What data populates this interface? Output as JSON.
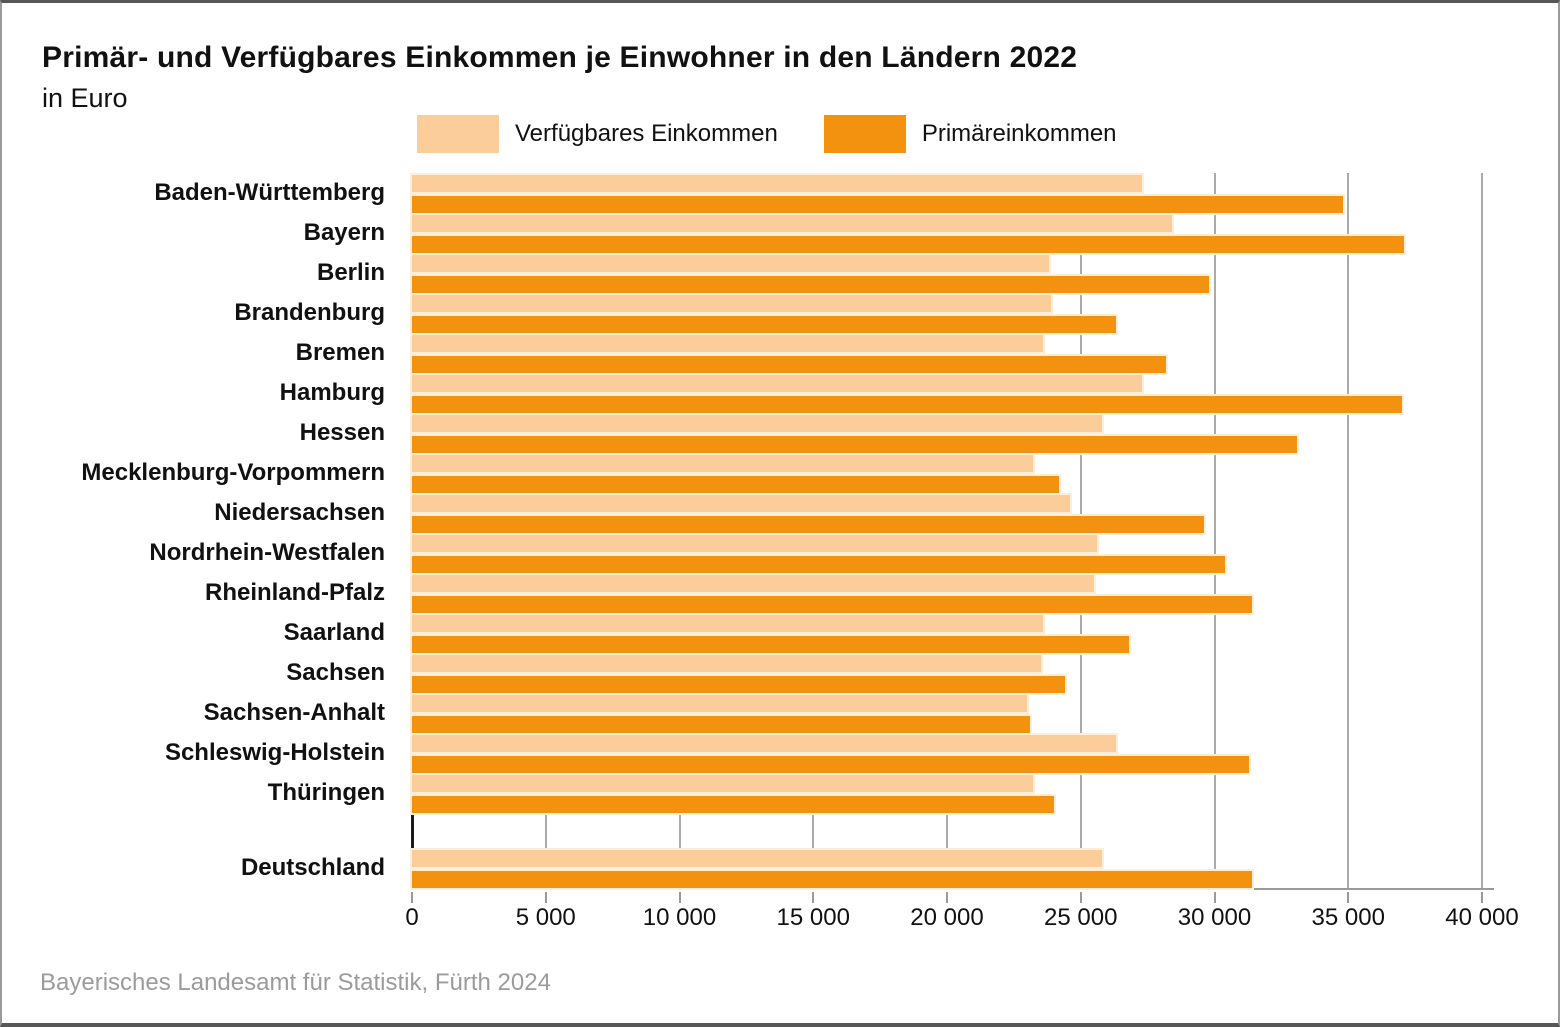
{
  "header": {
    "title": "Primär- und Verfügbares Einkommen je Einwohner in den Ländern 2022",
    "subtitle": "in Euro"
  },
  "legend": {
    "items": [
      {
        "label": "Verfügbares Einkommen",
        "color": "#FBCD9B"
      },
      {
        "label": "Primäreinkommen",
        "color": "#F3920F"
      }
    ]
  },
  "source": "Bayerisches Landesamt für Statistik, Fürth 2024",
  "chart_data": {
    "type": "bar",
    "orientation": "horizontal",
    "title": "Primär- und Verfügbares Einkommen je Einwohner in den Ländern 2022",
    "unit_label": "in Euro",
    "categories": [
      "Baden-Württemberg",
      "Bayern",
      "Berlin",
      "Brandenburg",
      "Bremen",
      "Hamburg",
      "Hessen",
      "Mecklenburg-Vorpommern",
      "Niedersachsen",
      "Nordrhein-Westfalen",
      "Rheinland-Pfalz",
      "Saarland",
      "Sachsen",
      "Sachsen-Anhalt",
      "Schleswig-Holstein",
      "Thüringen",
      "Deutschland"
    ],
    "separated_last_category": true,
    "series": [
      {
        "name": "Verfügbares Einkommen",
        "color": "#FBCD9B",
        "values": [
          27300,
          28400,
          23800,
          23900,
          23600,
          27300,
          25800,
          23200,
          24600,
          25600,
          25500,
          23600,
          23500,
          23000,
          26300,
          23200,
          25800
        ]
      },
      {
        "name": "Primäreinkommen",
        "color": "#F3920F",
        "values": [
          34800,
          37100,
          29800,
          26300,
          28200,
          37000,
          33100,
          24200,
          29600,
          30400,
          31400,
          26800,
          24400,
          23100,
          31300,
          24000,
          31400
        ]
      }
    ],
    "xlim": [
      0,
      40000
    ],
    "x_ticks": [
      0,
      5000,
      10000,
      15000,
      20000,
      25000,
      30000,
      35000,
      40000
    ],
    "x_tick_labels": [
      "0",
      "5 000",
      "10 000",
      "15 000",
      "20 000",
      "25 000",
      "30 000",
      "35 000",
      "40 000"
    ],
    "grid": "vertical-gridlines",
    "gridline_color": "#ABABAB",
    "zero_axis_color": "#1A1A1A",
    "legend_position": "top"
  }
}
